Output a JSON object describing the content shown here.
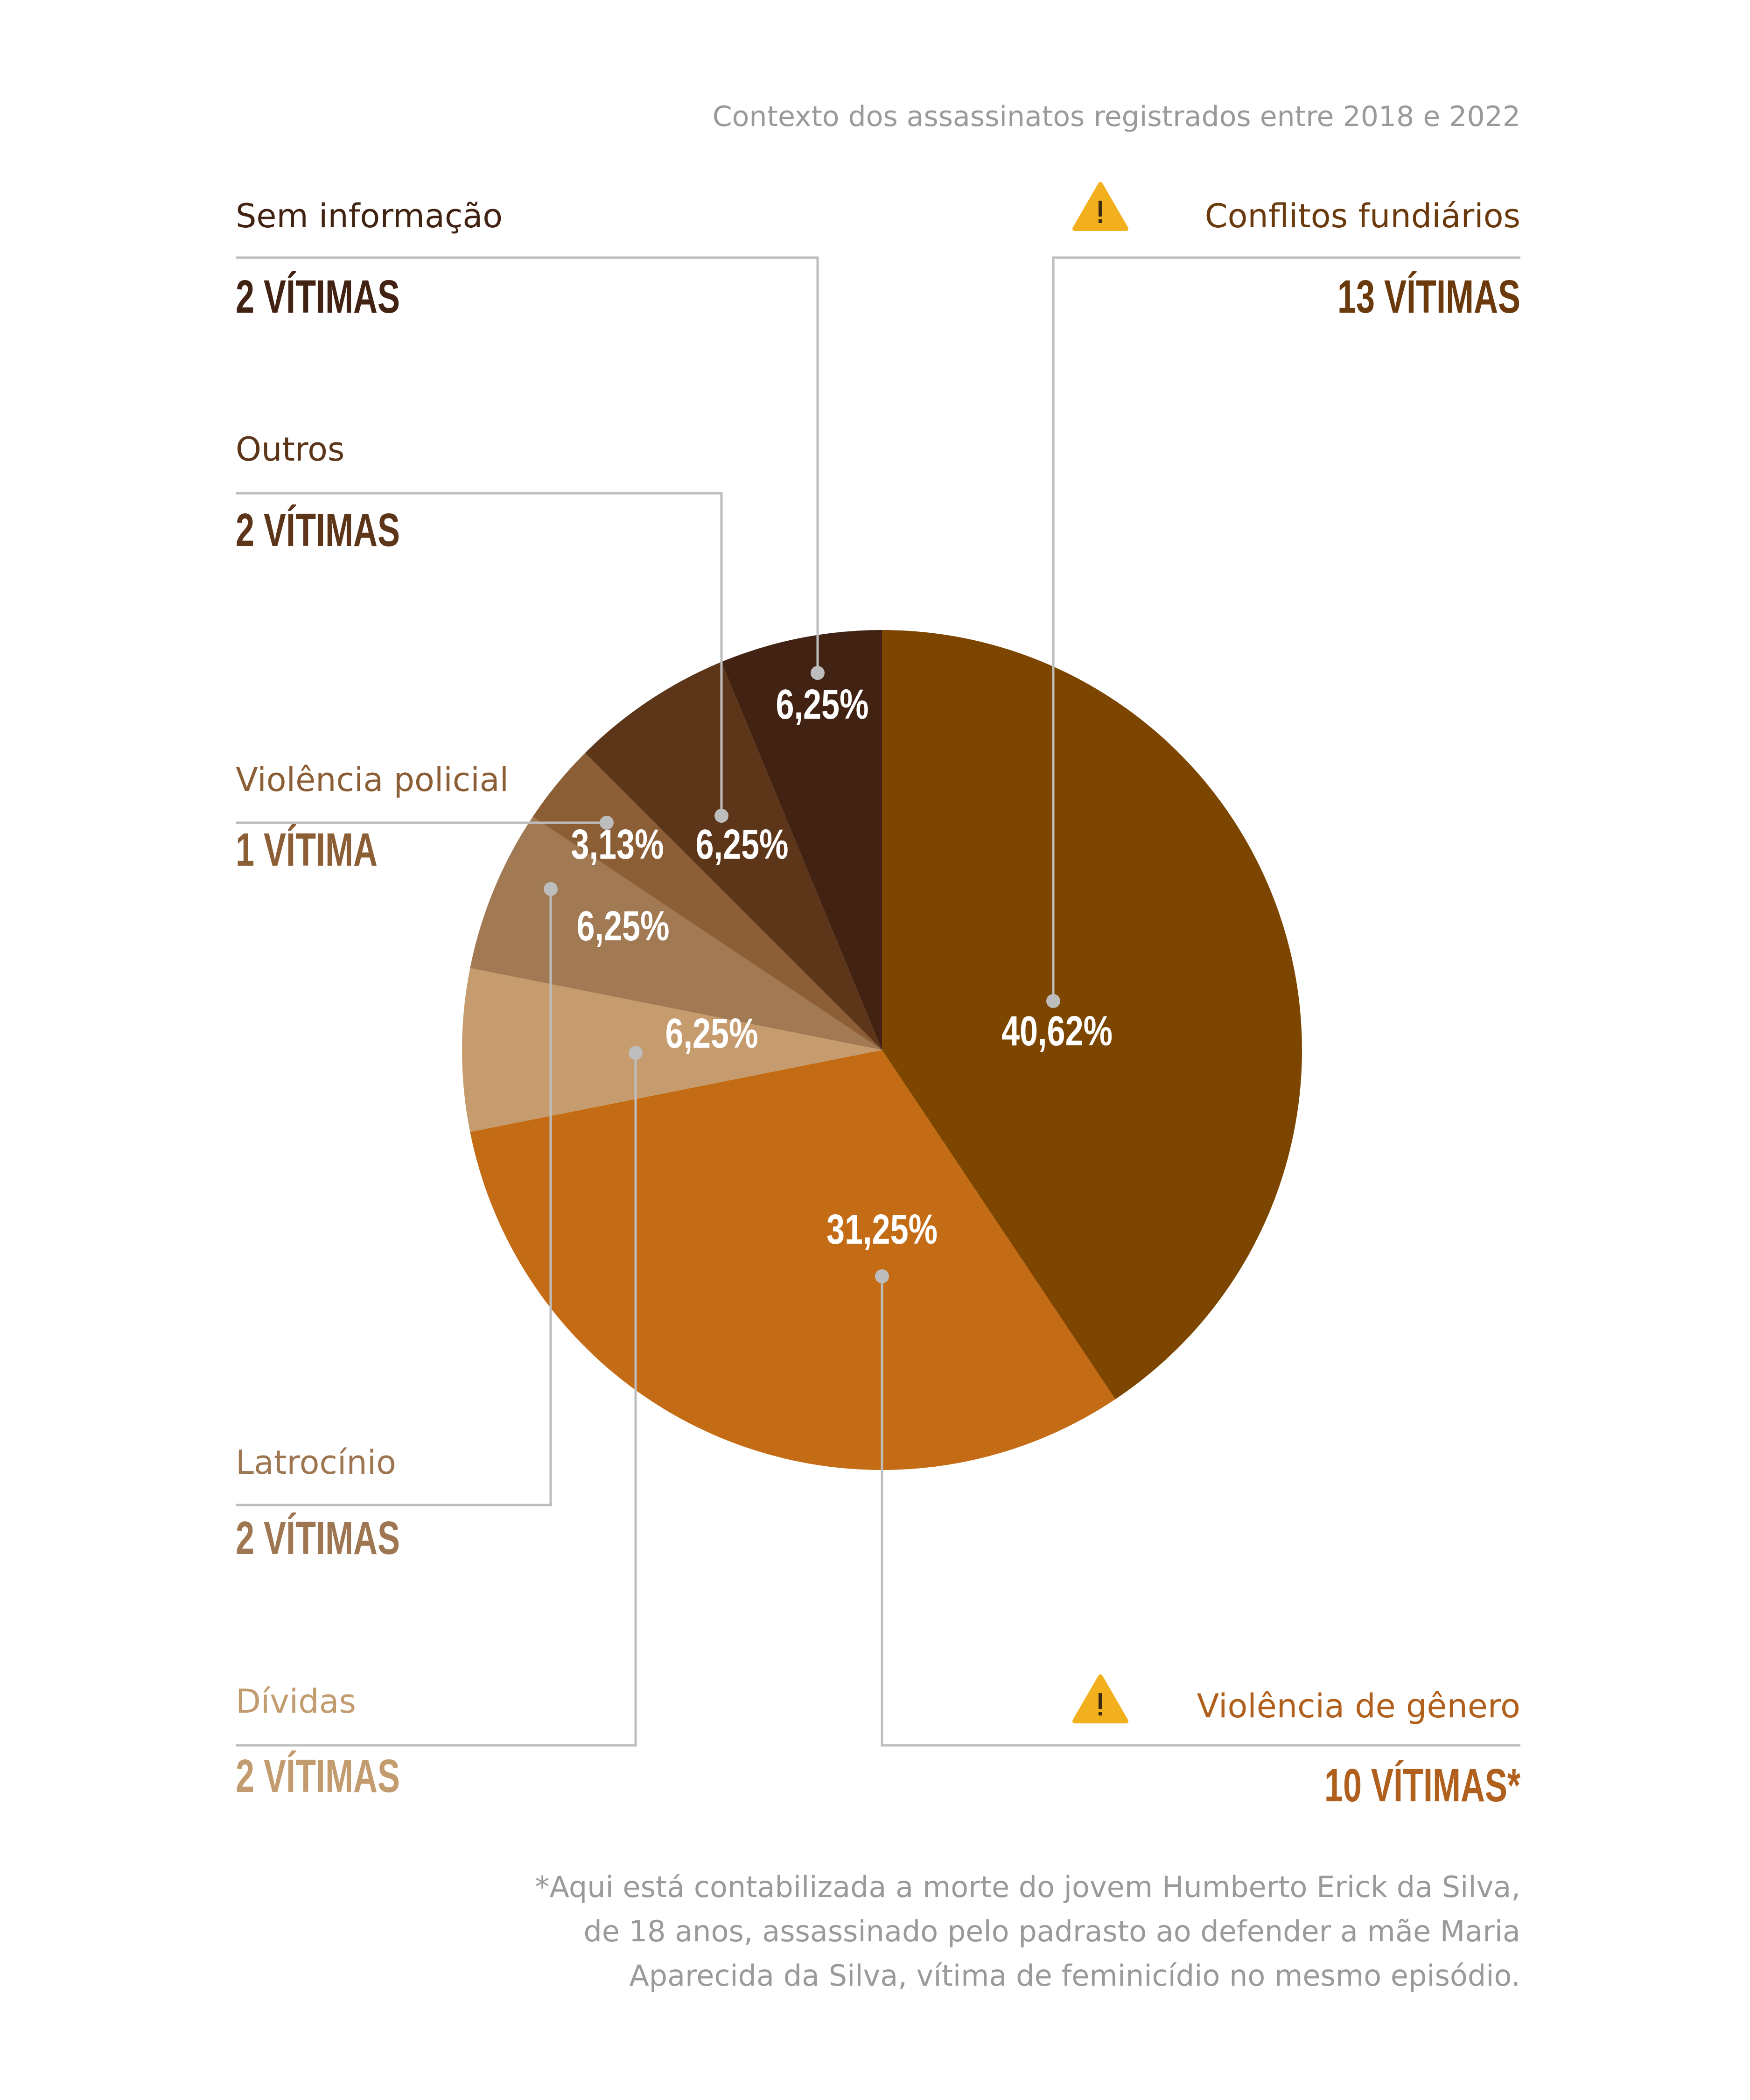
{
  "chart_data": {
    "type": "pie",
    "title": "Contexto dos assassinatos registrados entre 2018 e 2022",
    "slices": [
      {
        "name": "Conflitos fundiários",
        "value": 13,
        "percent_label": "40,62%",
        "count_label": "13 VÍTIMAS",
        "color": "#7d4600",
        "warning": true
      },
      {
        "name": "Violência de gênero",
        "value": 10,
        "percent_label": "31,25%",
        "count_label": "10 VÍTIMAS*",
        "color": "#c46b15",
        "warning": true
      },
      {
        "name": "Dívidas",
        "value": 2,
        "percent_label": "6,25%",
        "count_label": "2 VÍTIMAS",
        "color": "#c69b6d"
      },
      {
        "name": "Latrocínio",
        "value": 2,
        "percent_label": "6,25%",
        "count_label": "2 VÍTIMAS",
        "color": "#a17952"
      },
      {
        "name": "Violência policial",
        "value": 1,
        "percent_label": "3,13%",
        "count_label": "1 VÍTIMA",
        "color": "#8c5e35"
      },
      {
        "name": "Outros",
        "value": 2,
        "percent_label": "6,25%",
        "count_label": "2 VÍTIMAS",
        "color": "#5d3519"
      },
      {
        "name": "Sem informação",
        "value": 2,
        "percent_label": "6,25%",
        "count_label": "2 VÍTIMAS",
        "color": "#422313"
      }
    ],
    "label_colors": {
      "Conflitos fundiários": "#6b3a0c",
      "Violência de gênero": "#b0601c",
      "Dívidas": "#c29b6e",
      "Latrocínio": "#9e7652",
      "Violência policial": "#8c5e35",
      "Outros": "#5d3519",
      "Sem informação": "#422313"
    },
    "leader_color": "#bdbdbd",
    "warning_icon_color": "#f2b01e"
  },
  "footnote": [
    "*Aqui está contabilizada a morte do jovem Humberto Erick da Silva,",
    "de 18 anos, assassinado pelo padrasto ao defender a mãe Maria",
    "Aparecida da Silva, vítima de feminicídio no mesmo episódio."
  ]
}
